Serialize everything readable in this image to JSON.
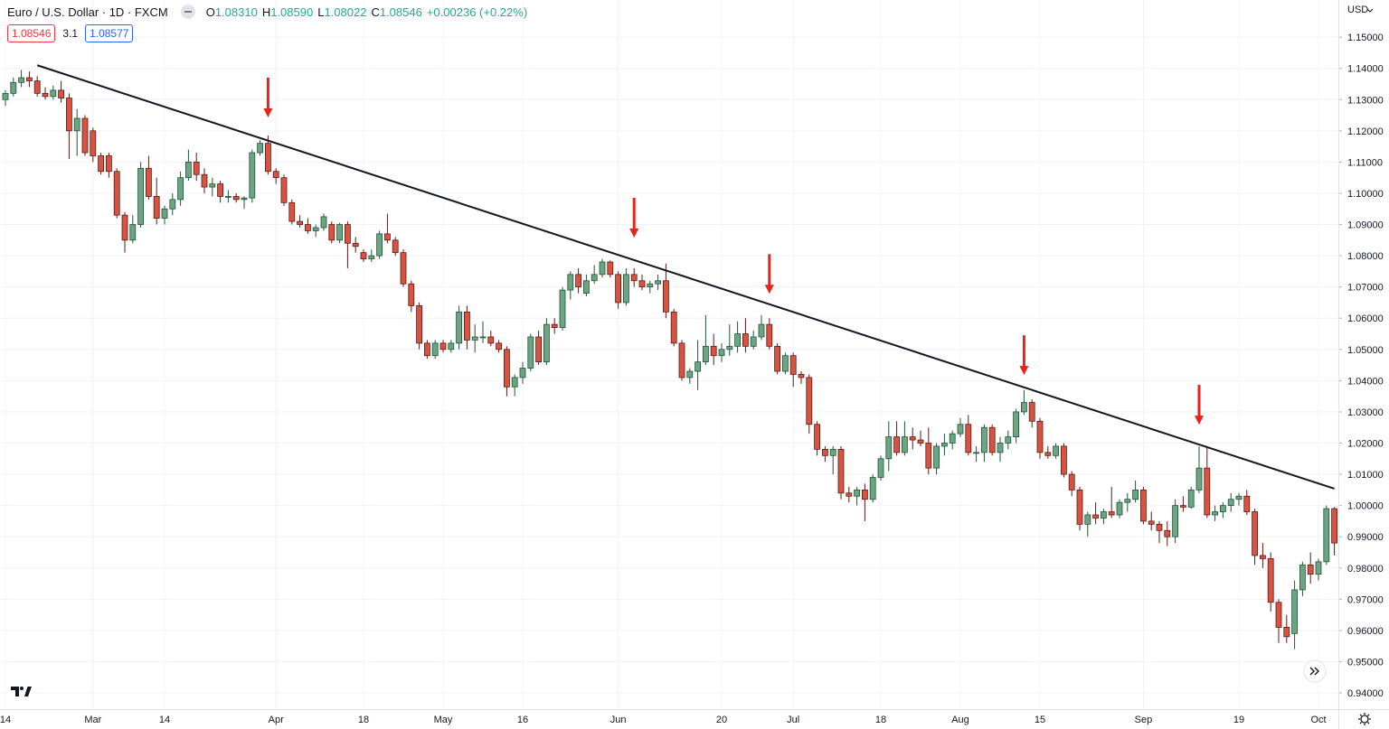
{
  "header": {
    "title": "Euro / U.S. Dollar · 1D · FXCM",
    "ohlc": [
      {
        "key": "O",
        "value": "1.08310"
      },
      {
        "key": "H",
        "value": "1.08590"
      },
      {
        "key": "L",
        "value": "1.08022"
      },
      {
        "key": "C",
        "value": "1.08546"
      }
    ],
    "change": "+0.00236 (+0.22%)",
    "sell_price": "1.08546",
    "spread": "3.1",
    "buy_price": "1.08577",
    "currency": "USD"
  },
  "chart_data": {
    "type": "candlestick",
    "up_color": "#6ba583",
    "down_color": "#d75442",
    "up_border": "#225437",
    "down_border": "#5b1a13",
    "ylim": [
      0.9348,
      1.1619
    ],
    "yticks": [
      {
        "value": 1.15,
        "label": "1.15000"
      },
      {
        "value": 1.14,
        "label": "1.14000"
      },
      {
        "value": 1.13,
        "label": "1.13000"
      },
      {
        "value": 1.12,
        "label": "1.12000"
      },
      {
        "value": 1.11,
        "label": "1.11000"
      },
      {
        "value": 1.1,
        "label": "1.10000"
      },
      {
        "value": 1.09,
        "label": "1.09000"
      },
      {
        "value": 1.08,
        "label": "1.08000"
      },
      {
        "value": 1.07,
        "label": "1.07000"
      },
      {
        "value": 1.06,
        "label": "1.06000"
      },
      {
        "value": 1.05,
        "label": "1.05000"
      },
      {
        "value": 1.04,
        "label": "1.04000"
      },
      {
        "value": 1.03,
        "label": "1.03000"
      },
      {
        "value": 1.02,
        "label": "1.02000"
      },
      {
        "value": 1.01,
        "label": "1.01000"
      },
      {
        "value": 1.0,
        "label": "1.00000"
      },
      {
        "value": 0.99,
        "label": "0.99000"
      },
      {
        "value": 0.98,
        "label": "0.98000"
      },
      {
        "value": 0.97,
        "label": "0.97000"
      },
      {
        "value": 0.96,
        "label": "0.96000"
      },
      {
        "value": 0.95,
        "label": "0.95000"
      },
      {
        "value": 0.94,
        "label": "0.94000"
      }
    ],
    "grid": true,
    "categories": [
      "14",
      null,
      null,
      null,
      null,
      null,
      null,
      null,
      null,
      null,
      null,
      "Mar",
      null,
      null,
      null,
      null,
      null,
      null,
      null,
      null,
      "14",
      null,
      null,
      null,
      null,
      null,
      null,
      null,
      null,
      null,
      null,
      null,
      null,
      null,
      "Apr",
      null,
      null,
      null,
      null,
      null,
      null,
      null,
      null,
      null,
      null,
      "18",
      null,
      null,
      null,
      null,
      null,
      null,
      null,
      null,
      null,
      "May",
      null,
      null,
      null,
      null,
      null,
      null,
      null,
      null,
      null,
      "16",
      null,
      null,
      null,
      null,
      null,
      null,
      null,
      null,
      null,
      null,
      null,
      "Jun",
      null,
      null,
      null,
      null,
      null,
      null,
      null,
      null,
      null,
      null,
      null,
      null,
      "20",
      null,
      null,
      null,
      null,
      null,
      null,
      null,
      null,
      "Jul",
      null,
      null,
      null,
      null,
      null,
      null,
      null,
      null,
      null,
      null,
      "18",
      null,
      null,
      null,
      null,
      null,
      null,
      null,
      null,
      null,
      "Aug",
      null,
      null,
      null,
      null,
      null,
      null,
      null,
      null,
      null,
      "15",
      null,
      null,
      null,
      null,
      null,
      null,
      null,
      null,
      null,
      null,
      null,
      null,
      "Sep",
      null,
      null,
      null,
      null,
      null,
      null,
      null,
      null,
      null,
      null,
      null,
      "19",
      null,
      null,
      null,
      null,
      null,
      null,
      null,
      null,
      null,
      "Oct",
      null,
      null
    ],
    "candles": [
      [
        1.13,
        1.133,
        1.128,
        1.132
      ],
      [
        1.132,
        1.137,
        1.131,
        1.1355
      ],
      [
        1.1355,
        1.1395,
        1.134,
        1.137
      ],
      [
        1.137,
        1.139,
        1.134,
        1.136
      ],
      [
        1.136,
        1.1375,
        1.131,
        1.132
      ],
      [
        1.132,
        1.134,
        1.13,
        1.131
      ],
      [
        1.131,
        1.1345,
        1.13,
        1.133
      ],
      [
        1.133,
        1.136,
        1.129,
        1.1305
      ],
      [
        1.1305,
        1.132,
        1.111,
        1.12
      ],
      [
        1.12,
        1.127,
        1.112,
        1.124
      ],
      [
        1.124,
        1.125,
        1.112,
        1.113
      ],
      [
        1.12,
        1.121,
        1.11,
        1.112
      ],
      [
        1.112,
        1.113,
        1.106,
        1.107
      ],
      [
        1.112,
        1.113,
        1.105,
        1.107
      ],
      [
        1.107,
        1.108,
        1.092,
        1.093
      ],
      [
        1.093,
        1.094,
        1.081,
        1.085
      ],
      [
        1.085,
        1.093,
        1.084,
        1.09
      ],
      [
        1.09,
        1.11,
        1.089,
        1.108
      ],
      [
        1.108,
        1.112,
        1.098,
        1.099
      ],
      [
        1.099,
        1.105,
        1.09,
        1.092
      ],
      [
        1.092,
        1.096,
        1.09,
        1.095
      ],
      [
        1.095,
        1.1,
        1.093,
        1.098
      ],
      [
        1.098,
        1.107,
        1.096,
        1.105
      ],
      [
        1.105,
        1.114,
        1.104,
        1.11
      ],
      [
        1.11,
        1.113,
        1.104,
        1.106
      ],
      [
        1.106,
        1.108,
        1.1,
        1.102
      ],
      [
        1.102,
        1.105,
        1.099,
        1.103
      ],
      [
        1.103,
        1.104,
        1.097,
        1.099
      ],
      [
        1.099,
        1.101,
        1.097,
        1.099
      ],
      [
        1.099,
        1.1,
        1.097,
        1.098
      ],
      [
        1.098,
        1.099,
        1.095,
        1.0985
      ],
      [
        1.0985,
        1.114,
        1.097,
        1.113
      ],
      [
        1.113,
        1.117,
        1.112,
        1.116
      ],
      [
        1.116,
        1.1185,
        1.106,
        1.107
      ],
      [
        1.107,
        1.108,
        1.103,
        1.105
      ],
      [
        1.105,
        1.106,
        1.096,
        1.097
      ],
      [
        1.097,
        1.098,
        1.09,
        1.091
      ],
      [
        1.091,
        1.093,
        1.089,
        1.09
      ],
      [
        1.09,
        1.092,
        1.087,
        1.088
      ],
      [
        1.088,
        1.09,
        1.086,
        1.089
      ],
      [
        1.089,
        1.0935,
        1.088,
        1.0925
      ],
      [
        1.09,
        1.091,
        1.084,
        1.085
      ],
      [
        1.085,
        1.0905,
        1.084,
        1.09
      ],
      [
        1.09,
        1.091,
        1.076,
        1.084
      ],
      [
        1.084,
        1.086,
        1.081,
        1.083
      ],
      [
        1.081,
        1.082,
        1.078,
        1.079
      ],
      [
        1.079,
        1.082,
        1.078,
        1.08
      ],
      [
        1.08,
        1.088,
        1.079,
        1.087
      ],
      [
        1.087,
        1.0935,
        1.084,
        1.085
      ],
      [
        1.085,
        1.086,
        1.08,
        1.081
      ],
      [
        1.081,
        1.082,
        1.07,
        1.071
      ],
      [
        1.071,
        1.072,
        1.062,
        1.064
      ],
      [
        1.064,
        1.065,
        1.05,
        1.052
      ],
      [
        1.052,
        1.053,
        1.047,
        1.048
      ],
      [
        1.048,
        1.053,
        1.047,
        1.052
      ],
      [
        1.052,
        1.053,
        1.049,
        1.05
      ],
      [
        1.05,
        1.053,
        1.049,
        1.052
      ],
      [
        1.052,
        1.064,
        1.05,
        1.062
      ],
      [
        1.062,
        1.064,
        1.05,
        1.053
      ],
      [
        1.053,
        1.058,
        1.049,
        1.054
      ],
      [
        1.054,
        1.059,
        1.052,
        1.054
      ],
      [
        1.054,
        1.056,
        1.051,
        1.052
      ],
      [
        1.052,
        1.053,
        1.049,
        1.05
      ],
      [
        1.05,
        1.051,
        1.035,
        1.038
      ],
      [
        1.038,
        1.042,
        1.035,
        1.041
      ],
      [
        1.041,
        1.046,
        1.039,
        1.044
      ],
      [
        1.044,
        1.055,
        1.043,
        1.054
      ],
      [
        1.054,
        1.056,
        1.045,
        1.046
      ],
      [
        1.046,
        1.06,
        1.045,
        1.058
      ],
      [
        1.058,
        1.06,
        1.055,
        1.057
      ],
      [
        1.057,
        1.07,
        1.056,
        1.069
      ],
      [
        1.069,
        1.075,
        1.066,
        1.074
      ],
      [
        1.074,
        1.076,
        1.068,
        1.07
      ],
      [
        1.068,
        1.074,
        1.067,
        1.072
      ],
      [
        1.072,
        1.077,
        1.071,
        1.074
      ],
      [
        1.074,
        1.079,
        1.073,
        1.078
      ],
      [
        1.078,
        1.0785,
        1.073,
        1.074
      ],
      [
        1.074,
        1.075,
        1.063,
        1.065
      ],
      [
        1.065,
        1.076,
        1.064,
        1.074
      ],
      [
        1.074,
        1.076,
        1.07,
        1.072
      ],
      [
        1.072,
        1.074,
        1.069,
        1.07
      ],
      [
        1.07,
        1.072,
        1.068,
        1.071
      ],
      [
        1.071,
        1.074,
        1.069,
        1.072
      ],
      [
        1.072,
        1.0775,
        1.06,
        1.062
      ],
      [
        1.062,
        1.063,
        1.051,
        1.052
      ],
      [
        1.052,
        1.053,
        1.04,
        1.041
      ],
      [
        1.041,
        1.044,
        1.039,
        1.043
      ],
      [
        1.043,
        1.053,
        1.037,
        1.046
      ],
      [
        1.046,
        1.061,
        1.045,
        1.051
      ],
      [
        1.051,
        1.055,
        1.045,
        1.048
      ],
      [
        1.048,
        1.052,
        1.046,
        1.05
      ],
      [
        1.05,
        1.058,
        1.048,
        1.051
      ],
      [
        1.051,
        1.059,
        1.049,
        1.055
      ],
      [
        1.055,
        1.06,
        1.049,
        1.051
      ],
      [
        1.051,
        1.056,
        1.05,
        1.054
      ],
      [
        1.054,
        1.061,
        1.053,
        1.058
      ],
      [
        1.058,
        1.06,
        1.05,
        1.051
      ],
      [
        1.051,
        1.052,
        1.042,
        1.043
      ],
      [
        1.043,
        1.049,
        1.042,
        1.048
      ],
      [
        1.048,
        1.049,
        1.038,
        1.042
      ],
      [
        1.042,
        1.043,
        1.039,
        1.041
      ],
      [
        1.041,
        1.042,
        1.023,
        1.026
      ],
      [
        1.026,
        1.027,
        1.016,
        1.018
      ],
      [
        1.018,
        1.019,
        1.014,
        1.016
      ],
      [
        1.016,
        1.019,
        1.01,
        1.018
      ],
      [
        1.018,
        1.019,
        1.002,
        1.004
      ],
      [
        1.004,
        1.006,
        1.001,
        1.003
      ],
      [
        1.003,
        1.006,
        1.0,
        1.005
      ],
      [
        1.005,
        1.007,
        0.995,
        1.002
      ],
      [
        1.002,
        1.01,
        1.001,
        1.009
      ],
      [
        1.009,
        1.016,
        1.008,
        1.015
      ],
      [
        1.015,
        1.027,
        1.011,
        1.022
      ],
      [
        1.022,
        1.027,
        1.016,
        1.017
      ],
      [
        1.017,
        1.027,
        1.016,
        1.022
      ],
      [
        1.022,
        1.025,
        1.018,
        1.021
      ],
      [
        1.021,
        1.024,
        1.019,
        1.02
      ],
      [
        1.02,
        1.025,
        1.01,
        1.012
      ],
      [
        1.012,
        1.02,
        1.01,
        1.019
      ],
      [
        1.019,
        1.023,
        1.016,
        1.02
      ],
      [
        1.02,
        1.024,
        1.018,
        1.023
      ],
      [
        1.023,
        1.028,
        1.022,
        1.026
      ],
      [
        1.026,
        1.029,
        1.016,
        1.017
      ],
      [
        1.017,
        1.019,
        1.014,
        1.017
      ],
      [
        1.017,
        1.026,
        1.014,
        1.025
      ],
      [
        1.025,
        1.026,
        1.016,
        1.017
      ],
      [
        1.017,
        1.022,
        1.014,
        1.02
      ],
      [
        1.02,
        1.024,
        1.018,
        1.022
      ],
      [
        1.022,
        1.031,
        1.02,
        1.03
      ],
      [
        1.03,
        1.037,
        1.029,
        1.033
      ],
      [
        1.033,
        1.034,
        1.025,
        1.027
      ],
      [
        1.027,
        1.028,
        1.015,
        1.017
      ],
      [
        1.017,
        1.019,
        1.015,
        1.016
      ],
      [
        1.016,
        1.02,
        1.015,
        1.019
      ],
      [
        1.019,
        1.02,
        1.009,
        1.01
      ],
      [
        1.01,
        1.011,
        1.003,
        1.005
      ],
      [
        1.005,
        1.006,
        0.992,
        0.994
      ],
      [
        0.994,
        0.998,
        0.99,
        0.997
      ],
      [
        0.997,
        1.001,
        0.994,
        0.996
      ],
      [
        0.996,
        0.999,
        0.994,
        0.998
      ],
      [
        0.998,
        1.006,
        0.996,
        0.997
      ],
      [
        0.997,
        1.002,
        0.996,
        1.001
      ],
      [
        1.001,
        1.004,
        0.998,
        1.002
      ],
      [
        1.002,
        1.008,
        1.001,
        1.005
      ],
      [
        1.005,
        1.006,
        0.994,
        0.995
      ],
      [
        0.995,
        0.998,
        0.992,
        0.994
      ],
      [
        0.994,
        0.995,
        0.988,
        0.992
      ],
      [
        0.992,
        0.995,
        0.987,
        0.99
      ],
      [
        0.99,
        1.002,
        0.988,
        1.0
      ],
      [
        1.0,
        1.003,
        0.998,
        0.9995
      ],
      [
        0.9995,
        1.006,
        0.999,
        1.005
      ],
      [
        1.005,
        1.019,
        1.004,
        1.012
      ],
      [
        1.012,
        1.019,
        0.996,
        0.997
      ],
      [
        0.997,
        1.0,
        0.995,
        0.998
      ],
      [
        0.998,
        1.001,
        0.996,
        1.0
      ],
      [
        1.0,
        1.004,
        0.998,
        1.002
      ],
      [
        1.002,
        1.004,
        1.0,
        1.003
      ],
      [
        1.003,
        1.005,
        0.997,
        0.998
      ],
      [
        0.998,
        0.999,
        0.981,
        0.984
      ],
      [
        0.984,
        0.988,
        0.98,
        0.983
      ],
      [
        0.983,
        0.985,
        0.966,
        0.969
      ],
      [
        0.969,
        0.97,
        0.956,
        0.961
      ],
      [
        0.961,
        0.965,
        0.956,
        0.958
      ],
      [
        0.959,
        0.976,
        0.954,
        0.973
      ],
      [
        0.973,
        0.982,
        0.971,
        0.981
      ],
      [
        0.981,
        0.985,
        0.975,
        0.978
      ],
      [
        0.978,
        0.983,
        0.976,
        0.982
      ],
      [
        0.982,
        1.0,
        0.981,
        0.999
      ],
      [
        0.999,
        0.9995,
        0.984,
        0.988
      ]
    ],
    "trendline": {
      "x": [
        4,
        167
      ],
      "y": [
        1.141,
        1.0054
      ],
      "color": "#131722"
    },
    "arrows": {
      "x": [
        33,
        79,
        96,
        128,
        150
      ],
      "y": [
        1.1243,
        1.0858,
        1.0678,
        1.0418,
        1.0259
      ],
      "color": "#e8231b"
    }
  }
}
